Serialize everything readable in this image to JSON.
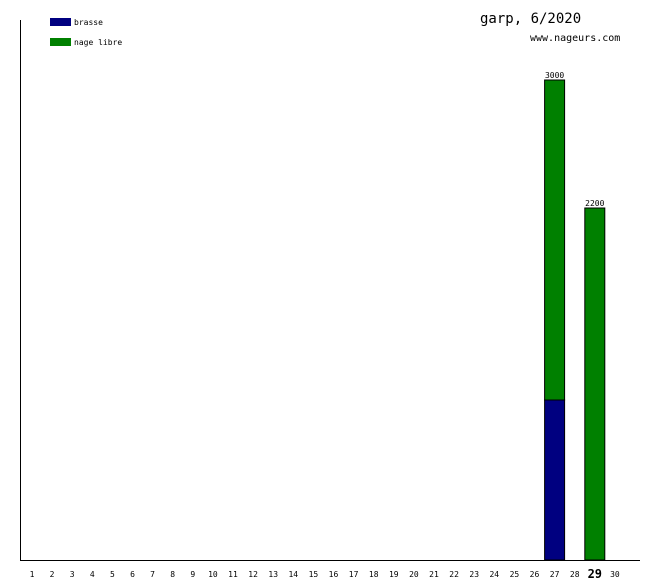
{
  "header": {
    "title": "garp, 6/2020",
    "site": "www.nageurs.com"
  },
  "colors": {
    "brasse": "#000080",
    "nage_libre": "#008000",
    "axis": "#000000",
    "bar_outline": "#000000"
  },
  "chart_data": {
    "type": "bar",
    "stacked": true,
    "title": "garp, 6/2020",
    "xlabel": "",
    "ylabel": "",
    "categories": [
      "1",
      "2",
      "3",
      "4",
      "5",
      "6",
      "7",
      "8",
      "9",
      "10",
      "11",
      "12",
      "13",
      "14",
      "15",
      "16",
      "17",
      "18",
      "19",
      "20",
      "21",
      "22",
      "23",
      "24",
      "25",
      "26",
      "27",
      "28",
      "29",
      "30"
    ],
    "highlight_category": "29",
    "series": [
      {
        "name": "brasse",
        "color": "#000080",
        "values": [
          0,
          0,
          0,
          0,
          0,
          0,
          0,
          0,
          0,
          0,
          0,
          0,
          0,
          0,
          0,
          0,
          0,
          0,
          0,
          0,
          0,
          0,
          0,
          0,
          0,
          0,
          1000,
          0,
          0,
          0
        ]
      },
      {
        "name": "nage libre",
        "color": "#008000",
        "values": [
          0,
          0,
          0,
          0,
          0,
          0,
          0,
          0,
          0,
          0,
          0,
          0,
          0,
          0,
          0,
          0,
          0,
          0,
          0,
          0,
          0,
          0,
          0,
          0,
          0,
          0,
          2000,
          0,
          2200,
          0
        ]
      }
    ],
    "totals": [
      {
        "category": "27",
        "label": "3000"
      },
      {
        "category": "29",
        "label": "2200"
      }
    ],
    "ylim": [
      0,
      3000
    ],
    "grid": false,
    "legend": "top-left"
  }
}
